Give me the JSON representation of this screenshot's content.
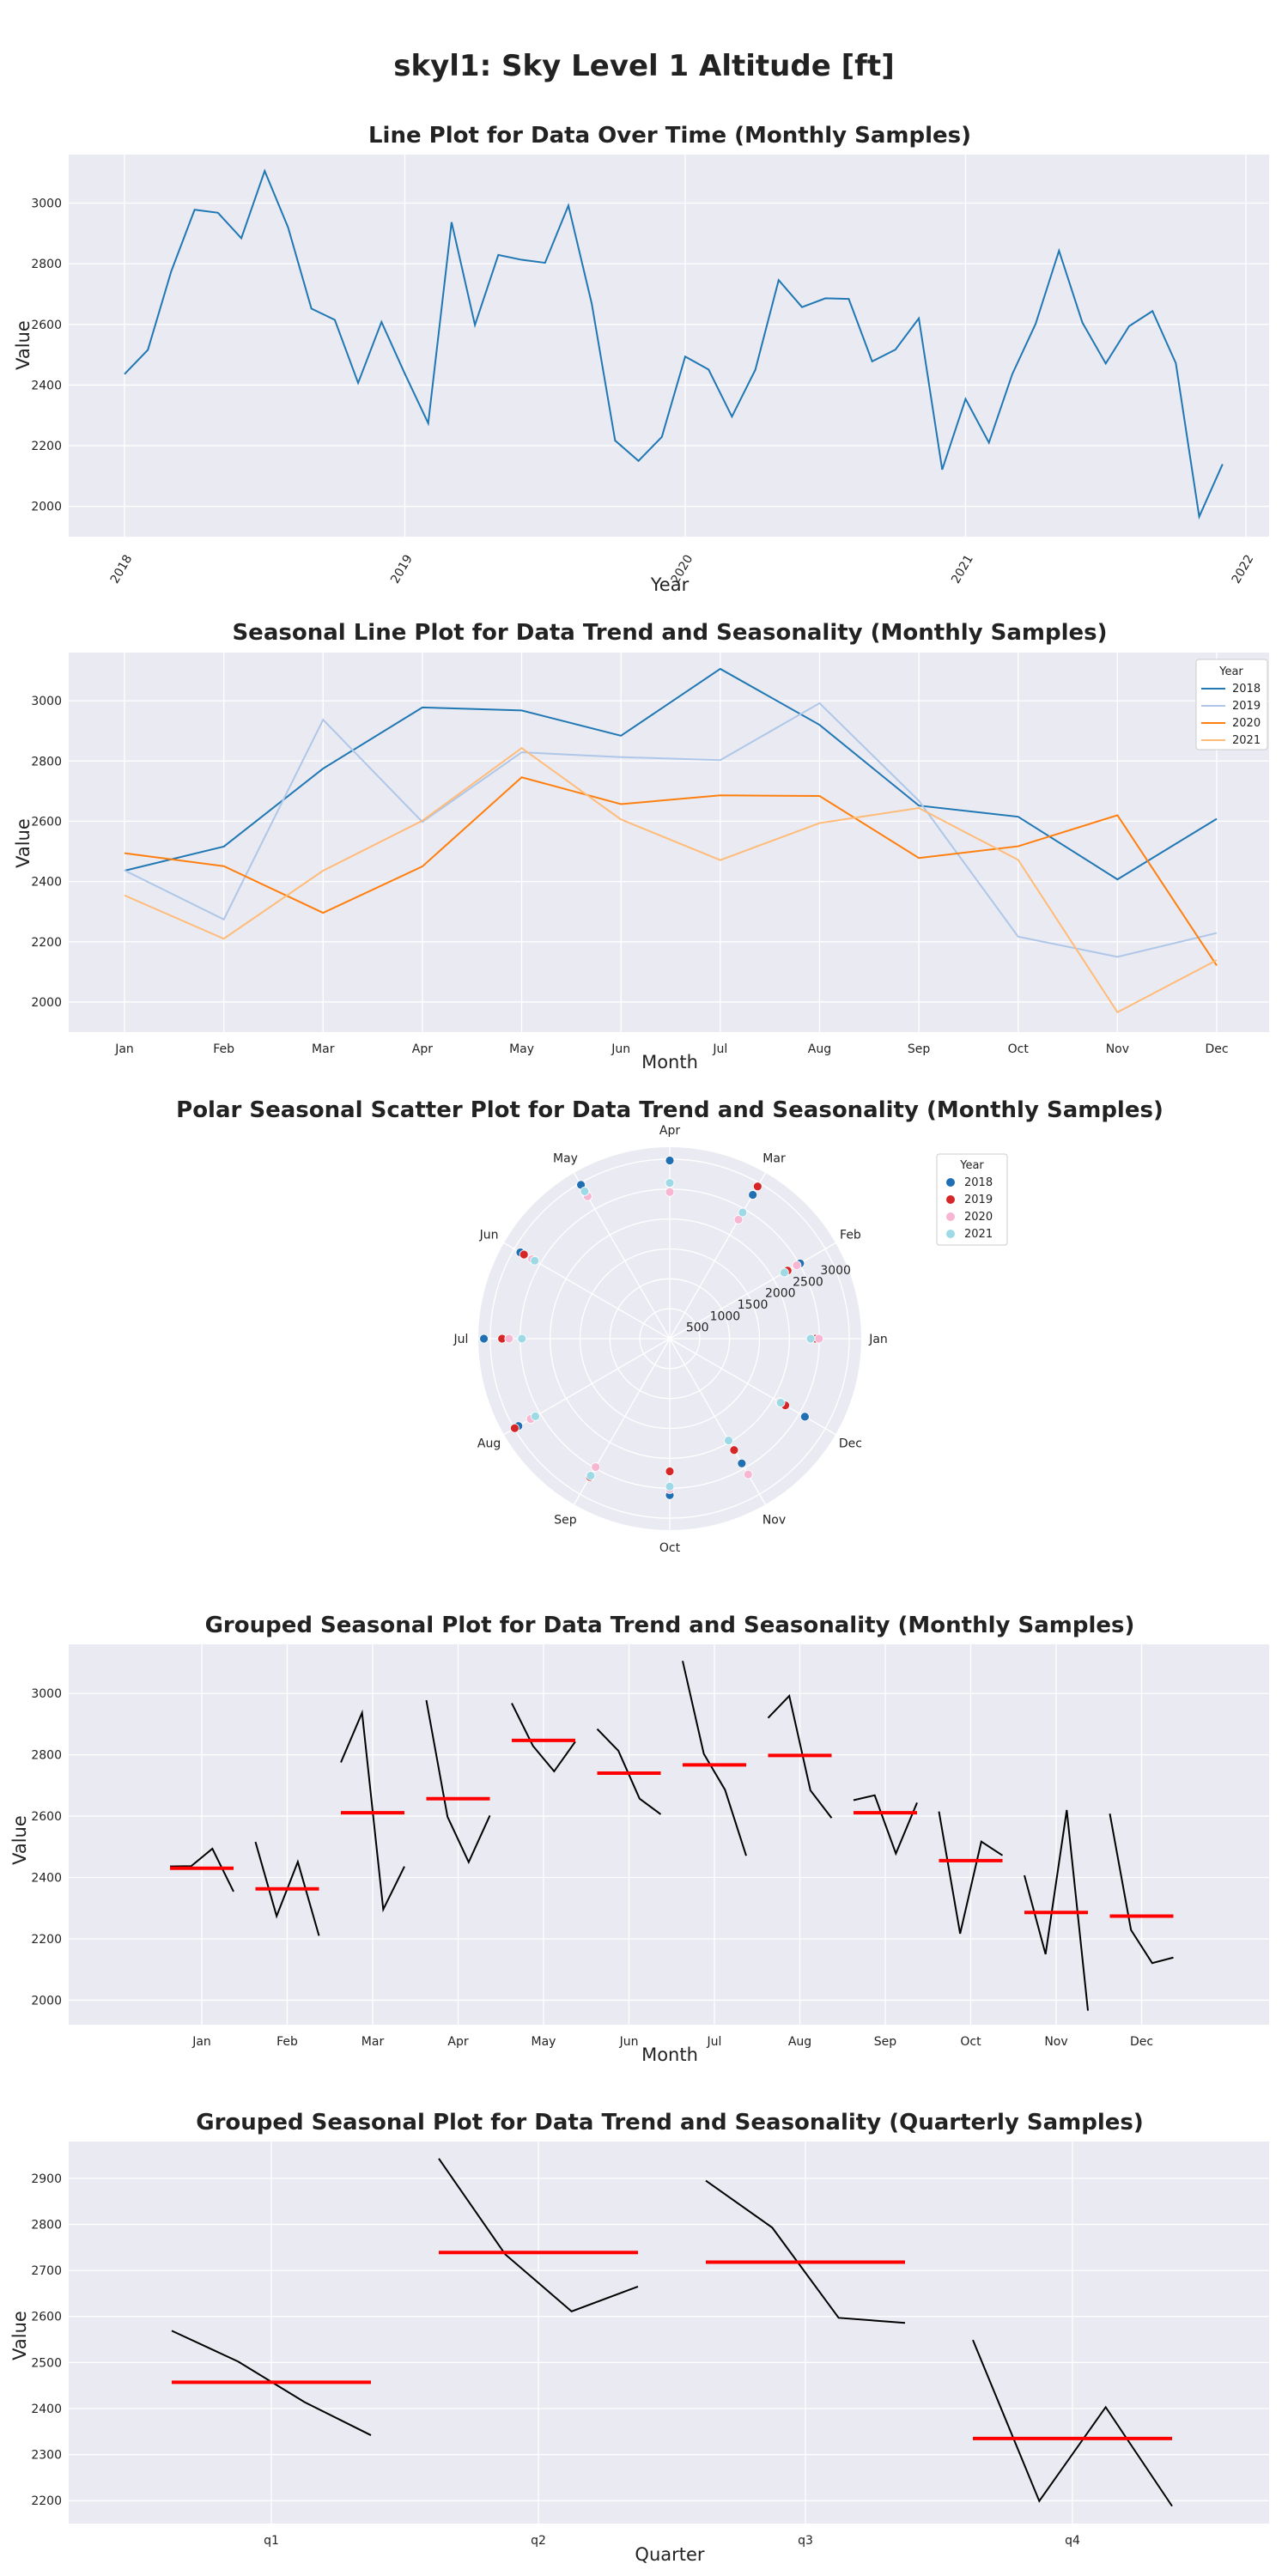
{
  "figure_title": "skyl1: Sky Level 1 Altitude [ft]",
  "colors": {
    "panel_bg": "#EAEAF2",
    "grid": "#FFFFFF",
    "line_main": "#1F77B4",
    "series_2018": "#1F77B4",
    "series_2019": "#AEC7E8",
    "series_2020": "#FF7F0E",
    "series_2021": "#FFBB78",
    "polar_2018": "#1F6FB2",
    "polar_2019": "#D62728",
    "polar_2020": "#F7B6D2",
    "polar_2021": "#9EDAE5",
    "mean_line": "#FF0000",
    "group_line": "#000000"
  },
  "chart_data": [
    {
      "type": "line",
      "title": "Line Plot for Data Over Time (Monthly Samples)",
      "xlabel": "Year",
      "ylabel": "Value",
      "x_ticks": [
        "2018",
        "2019",
        "2020",
        "2021",
        "2022"
      ],
      "ylim": [
        1900,
        3160
      ],
      "y_ticks": [
        "2000",
        "2200",
        "2400",
        "2600",
        "2800",
        "3000"
      ],
      "start": "2018-01",
      "end": "2021-12",
      "grid": true,
      "values": [
        2436,
        2516,
        2775,
        2978,
        2968,
        2884,
        3106,
        2920,
        2652,
        2615,
        2407,
        2608,
        2437,
        2274,
        2937,
        2598,
        2829,
        2813,
        2803,
        2992,
        2668,
        2217,
        2150,
        2229,
        2494,
        2451,
        2296,
        2450,
        2746,
        2657,
        2686,
        2684,
        2478,
        2517,
        2620,
        2121,
        2354,
        2210,
        2436,
        2602,
        2843,
        2606,
        2471,
        2594,
        2644,
        2472,
        1966,
        2139
      ]
    },
    {
      "type": "line",
      "title": "Seasonal Line Plot for Data Trend and Seasonality (Monthly Samples)",
      "xlabel": "Month",
      "ylabel": "Value",
      "categories": [
        "Jan",
        "Feb",
        "Mar",
        "Apr",
        "May",
        "Jun",
        "Jul",
        "Aug",
        "Sep",
        "Oct",
        "Nov",
        "Dec"
      ],
      "ylim": [
        1900,
        3160
      ],
      "y_ticks": [
        "2000",
        "2200",
        "2400",
        "2600",
        "2800",
        "3000"
      ],
      "legend_title": "Year",
      "legend_position": "top-right",
      "grid": true,
      "series": [
        {
          "name": "2018",
          "values": [
            2436,
            2516,
            2775,
            2978,
            2968,
            2884,
            3106,
            2920,
            2652,
            2615,
            2407,
            2608
          ]
        },
        {
          "name": "2019",
          "values": [
            2437,
            2274,
            2937,
            2598,
            2829,
            2813,
            2803,
            2992,
            2668,
            2217,
            2150,
            2229
          ]
        },
        {
          "name": "2020",
          "values": [
            2494,
            2451,
            2296,
            2450,
            2746,
            2657,
            2686,
            2684,
            2478,
            2517,
            2620,
            2121
          ]
        },
        {
          "name": "2021",
          "values": [
            2354,
            2210,
            2436,
            2602,
            2843,
            2606,
            2471,
            2594,
            2644,
            2472,
            1966,
            2139
          ]
        }
      ]
    },
    {
      "type": "scatter",
      "projection": "polar",
      "title": "Polar Seasonal Scatter Plot for Data Trend and Seasonality (Monthly Samples)",
      "angle_labels": [
        "Jan",
        "Feb",
        "Mar",
        "Apr",
        "May",
        "Jun",
        "Jul",
        "Aug",
        "Sep",
        "Oct",
        "Nov",
        "Dec"
      ],
      "r_ticks": [
        "500",
        "1000",
        "1500",
        "2000",
        "2500",
        "3000"
      ],
      "rlim": [
        0,
        3200
      ],
      "legend_title": "Year",
      "legend_position": "right",
      "series": [
        {
          "name": "2018",
          "values": [
            2436,
            2516,
            2775,
            2978,
            2968,
            2884,
            3106,
            2920,
            2652,
            2615,
            2407,
            2608
          ]
        },
        {
          "name": "2019",
          "values": [
            2437,
            2274,
            2937,
            2598,
            2829,
            2813,
            2803,
            2992,
            2668,
            2217,
            2150,
            2229
          ]
        },
        {
          "name": "2020",
          "values": [
            2494,
            2451,
            2296,
            2450,
            2746,
            2657,
            2686,
            2684,
            2478,
            2517,
            2620,
            2121
          ]
        },
        {
          "name": "2021",
          "values": [
            2354,
            2210,
            2436,
            2602,
            2843,
            2606,
            2471,
            2594,
            2644,
            2472,
            1966,
            2139
          ]
        }
      ]
    },
    {
      "type": "line",
      "title": "Grouped Seasonal Plot for Data Trend and Seasonality (Monthly Samples)",
      "xlabel": "Month",
      "ylabel": "Value",
      "categories": [
        "Jan",
        "Feb",
        "Mar",
        "Apr",
        "May",
        "Jun",
        "Jul",
        "Aug",
        "Sep",
        "Oct",
        "Nov",
        "Dec"
      ],
      "ylim": [
        1920,
        3160
      ],
      "y_ticks": [
        "2000",
        "2200",
        "2400",
        "2600",
        "2800",
        "3000"
      ],
      "groups": [
        [
          2436,
          2437,
          2494,
          2354
        ],
        [
          2516,
          2274,
          2451,
          2210
        ],
        [
          2775,
          2937,
          2296,
          2436
        ],
        [
          2978,
          2598,
          2450,
          2602
        ],
        [
          2968,
          2829,
          2746,
          2843
        ],
        [
          2884,
          2813,
          2657,
          2606
        ],
        [
          3106,
          2803,
          2686,
          2471
        ],
        [
          2920,
          2992,
          2684,
          2594
        ],
        [
          2652,
          2668,
          2478,
          2644
        ],
        [
          2615,
          2217,
          2517,
          2472
        ],
        [
          2407,
          2150,
          2620,
          1966
        ],
        [
          2608,
          2229,
          2121,
          2139
        ]
      ],
      "means": [
        2430,
        2363,
        2611,
        2657,
        2847,
        2740,
        2767,
        2798,
        2611,
        2455,
        2286,
        2274
      ],
      "grid": true
    },
    {
      "type": "line",
      "title": "Grouped Seasonal Plot for Data Trend and Seasonality (Quarterly Samples)",
      "xlabel": "Quarter",
      "ylabel": "Value",
      "categories": [
        "q1",
        "q2",
        "q3",
        "q4"
      ],
      "ylim": [
        2150,
        2980
      ],
      "y_ticks": [
        "2200",
        "2300",
        "2400",
        "2500",
        "2600",
        "2700",
        "2800",
        "2900"
      ],
      "groups": [
        [
          2569,
          2502,
          2414,
          2342
        ],
        [
          2943,
          2735,
          2611,
          2665
        ],
        [
          2895,
          2793,
          2597,
          2586
        ],
        [
          2549,
          2199,
          2403,
          2188
        ]
      ],
      "means": [
        2457,
        2739,
        2718,
        2335
      ],
      "grid": true
    }
  ]
}
